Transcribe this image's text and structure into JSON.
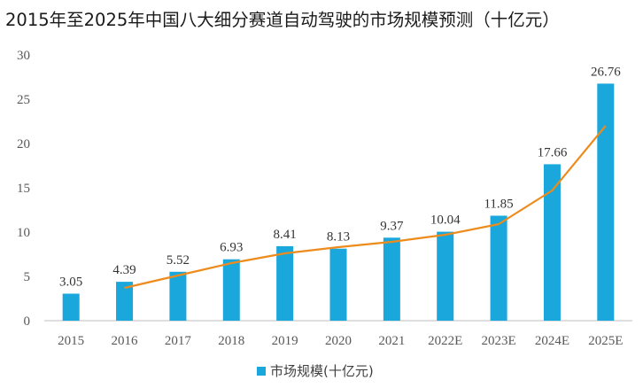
{
  "chart_data": {
    "type": "bar",
    "title": "2015年至2025年中国八大细分赛道自动驾驶的市场规模预测（十亿元）",
    "categories": [
      "2015",
      "2016",
      "2017",
      "2018",
      "2019",
      "2020",
      "2021",
      "2022E",
      "2023E",
      "2024E",
      "2025E"
    ],
    "series": [
      {
        "name": "市场规模(十亿元)",
        "values": [
          3.05,
          4.39,
          5.52,
          6.93,
          8.41,
          8.13,
          9.37,
          10.04,
          11.85,
          17.66,
          26.76
        ],
        "labels": [
          "3.05",
          "4.39",
          "5.52",
          "6.93",
          "8.41",
          "8.13",
          "9.37",
          "10.04",
          "11.85",
          "17.66",
          "26.76"
        ]
      }
    ],
    "trend_line": {
      "type": "line",
      "start_category": "2016",
      "values": [
        3.7,
        5.1,
        6.5,
        7.6,
        8.3,
        8.9,
        9.7,
        10.9,
        14.7,
        22.0
      ]
    },
    "yticks": [
      "0",
      "5",
      "10",
      "15",
      "20",
      "25",
      "30"
    ],
    "ylim": [
      0,
      30
    ],
    "legend": "bottom",
    "colors": {
      "bar": "#1aa7db",
      "trend": "#ed8b1c",
      "axis": "#bfbfbf"
    }
  }
}
